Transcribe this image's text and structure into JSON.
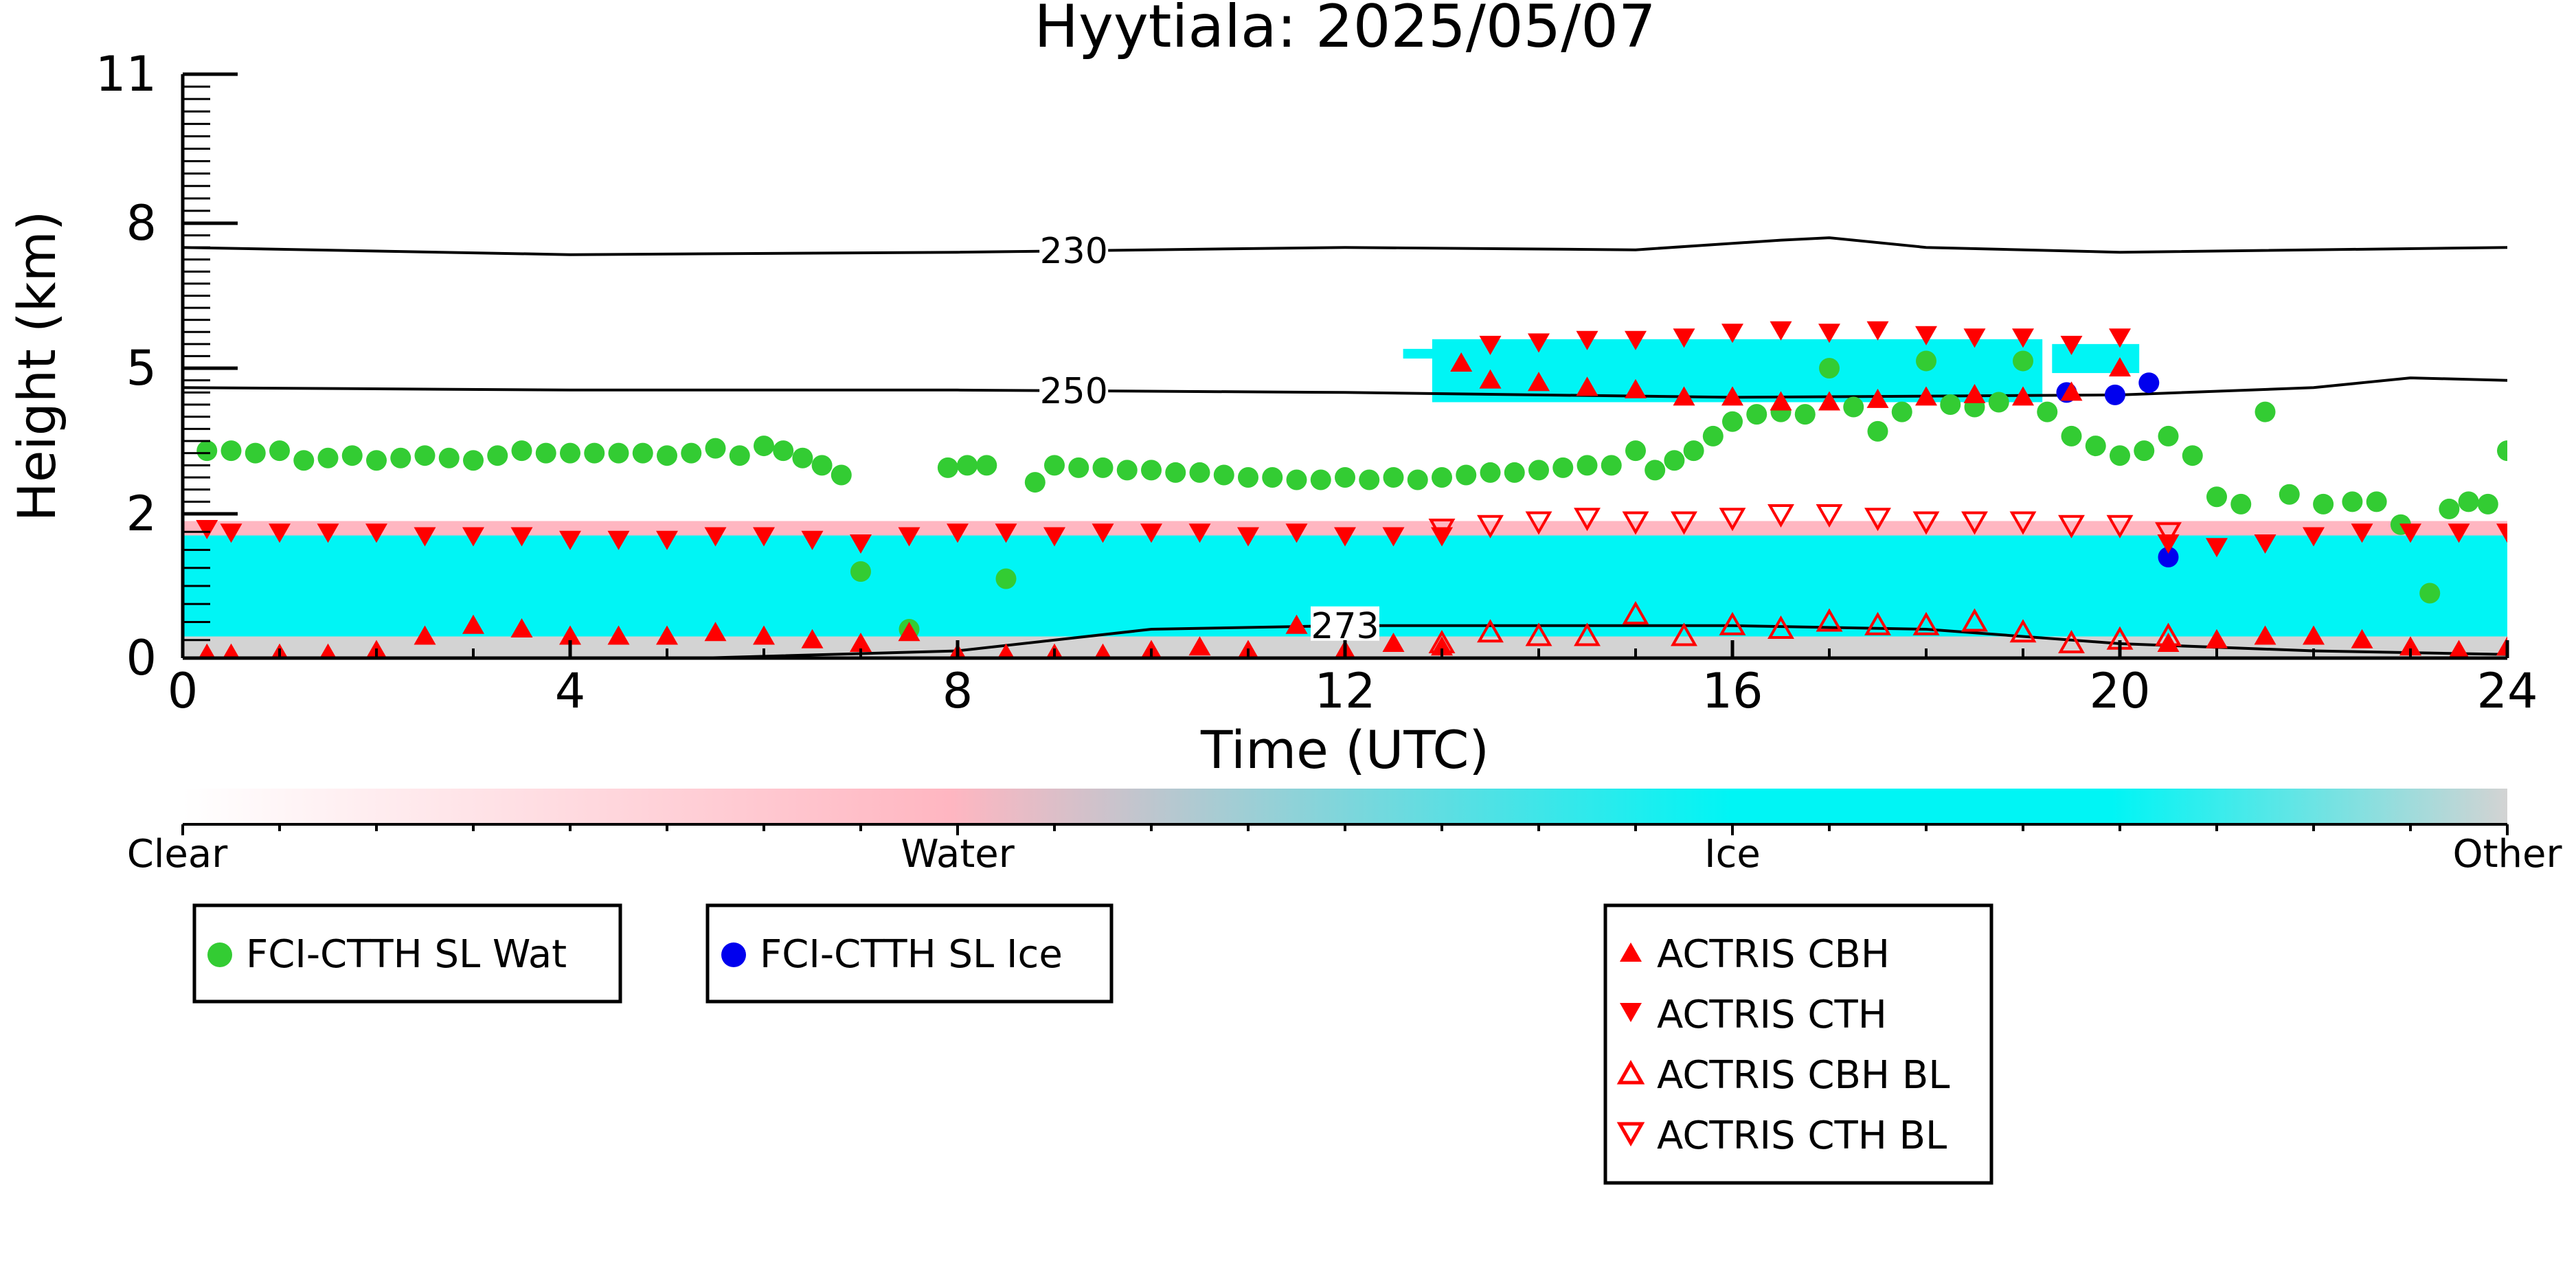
{
  "chart_data": {
    "type": "scatter",
    "title": "Hyytiala: 2025/05/07",
    "xlabel": "Time (UTC)",
    "ylabel": "Height (km)",
    "xlim": [
      0,
      24
    ],
    "ylim": [
      0,
      11
    ],
    "x_ticks": [
      0,
      4,
      8,
      12,
      16,
      20,
      24
    ],
    "x_tick_labels": [
      "0",
      "4",
      "8",
      "12",
      "16",
      "20",
      "24"
    ],
    "y_ticks": [
      0,
      2,
      5,
      8,
      11
    ],
    "y_tick_labels": [
      "0",
      "2",
      "5",
      "8",
      "11"
    ],
    "y_scale": "nonlinear (0-2 km expanded)",
    "grid": false,
    "background": {
      "phase_colorbar": {
        "labels": [
          "Clear",
          "Water",
          "Ice",
          "Other"
        ],
        "colors": [
          "#ffffff",
          "#ffb6c1",
          "#00f5f5",
          "#d3d3d3"
        ]
      },
      "regions": [
        {
          "phase": "Water",
          "x0": 0.0,
          "x1": 24.0,
          "y0": 1.45,
          "y1": 1.9
        },
        {
          "phase": "Ice",
          "x0": 0.0,
          "x1": 24.0,
          "y0": 0.25,
          "y1": 1.7
        },
        {
          "phase": "Other",
          "x0": 0.0,
          "x1": 24.0,
          "y0": 0.0,
          "y1": 0.3
        },
        {
          "phase": "Ice",
          "x0": 12.9,
          "x1": 19.2,
          "y0": 4.3,
          "y1": 5.6
        },
        {
          "phase": "Ice",
          "x0": 19.3,
          "x1": 20.2,
          "y0": 4.9,
          "y1": 5.5
        },
        {
          "phase": "Ice",
          "x0": 12.6,
          "x1": 13.0,
          "y0": 5.2,
          "y1": 5.4
        }
      ]
    },
    "temperature_contours": [
      {
        "label": "230",
        "points": [
          [
            0,
            7.5
          ],
          [
            4,
            7.35
          ],
          [
            8,
            7.4
          ],
          [
            12,
            7.5
          ],
          [
            15,
            7.45
          ],
          [
            16.5,
            7.65
          ],
          [
            17,
            7.7
          ],
          [
            18,
            7.5
          ],
          [
            20,
            7.4
          ],
          [
            24,
            7.5
          ]
        ],
        "label_at": 9.2
      },
      {
        "label": "250",
        "points": [
          [
            0,
            4.6
          ],
          [
            4,
            4.55
          ],
          [
            8,
            4.55
          ],
          [
            12,
            4.5
          ],
          [
            16,
            4.4
          ],
          [
            20,
            4.45
          ],
          [
            22,
            4.6
          ],
          [
            23,
            4.8
          ],
          [
            24,
            4.75
          ]
        ],
        "label_at": 9.2
      },
      {
        "label": "273",
        "points": [
          [
            0,
            0.0
          ],
          [
            4,
            -0.05
          ],
          [
            8,
            0.1
          ],
          [
            10,
            0.4
          ],
          [
            12,
            0.45
          ],
          [
            14,
            0.45
          ],
          [
            16,
            0.45
          ],
          [
            18,
            0.4
          ],
          [
            20,
            0.2
          ],
          [
            22,
            0.1
          ],
          [
            24,
            0.05
          ]
        ],
        "label_at": 12.0
      }
    ],
    "series": [
      {
        "name": "FCI-CTTH SL Wat",
        "marker": "circle",
        "color": "#33cc33",
        "points": [
          [
            0.25,
            3.3
          ],
          [
            0.5,
            3.3
          ],
          [
            0.75,
            3.25
          ],
          [
            1.0,
            3.3
          ],
          [
            1.25,
            3.1
          ],
          [
            1.5,
            3.15
          ],
          [
            1.75,
            3.2
          ],
          [
            2.0,
            3.1
          ],
          [
            2.25,
            3.15
          ],
          [
            2.5,
            3.2
          ],
          [
            2.75,
            3.15
          ],
          [
            3.0,
            3.1
          ],
          [
            3.25,
            3.2
          ],
          [
            3.5,
            3.3
          ],
          [
            3.75,
            3.25
          ],
          [
            4.0,
            3.25
          ],
          [
            4.25,
            3.25
          ],
          [
            4.5,
            3.25
          ],
          [
            4.75,
            3.25
          ],
          [
            5.0,
            3.2
          ],
          [
            5.25,
            3.25
          ],
          [
            5.5,
            3.35
          ],
          [
            5.75,
            3.2
          ],
          [
            6.0,
            3.4
          ],
          [
            6.2,
            3.3
          ],
          [
            6.4,
            3.15
          ],
          [
            6.6,
            3.0
          ],
          [
            6.8,
            2.8
          ],
          [
            7.0,
            1.2
          ],
          [
            7.5,
            0.4
          ],
          [
            7.9,
            2.95
          ],
          [
            8.1,
            3.0
          ],
          [
            8.3,
            3.0
          ],
          [
            8.5,
            1.1
          ],
          [
            8.8,
            2.65
          ],
          [
            9.0,
            3.0
          ],
          [
            9.25,
            2.95
          ],
          [
            9.5,
            2.95
          ],
          [
            9.75,
            2.9
          ],
          [
            10.0,
            2.9
          ],
          [
            10.25,
            2.85
          ],
          [
            10.5,
            2.85
          ],
          [
            10.75,
            2.8
          ],
          [
            11.0,
            2.75
          ],
          [
            11.25,
            2.75
          ],
          [
            11.5,
            2.7
          ],
          [
            11.75,
            2.7
          ],
          [
            12.0,
            2.75
          ],
          [
            12.25,
            2.7
          ],
          [
            12.5,
            2.75
          ],
          [
            12.75,
            2.7
          ],
          [
            13.0,
            2.75
          ],
          [
            13.25,
            2.8
          ],
          [
            13.5,
            2.85
          ],
          [
            13.75,
            2.85
          ],
          [
            14.0,
            2.9
          ],
          [
            14.25,
            2.95
          ],
          [
            14.5,
            3.0
          ],
          [
            14.75,
            3.0
          ],
          [
            15.0,
            3.3
          ],
          [
            15.2,
            2.9
          ],
          [
            15.4,
            3.1
          ],
          [
            15.6,
            3.3
          ],
          [
            15.8,
            3.6
          ],
          [
            16.0,
            3.9
          ],
          [
            16.25,
            4.05
          ],
          [
            16.5,
            4.1
          ],
          [
            16.75,
            4.05
          ],
          [
            17.0,
            5.0
          ],
          [
            17.25,
            4.2
          ],
          [
            17.5,
            3.7
          ],
          [
            17.75,
            4.1
          ],
          [
            18.0,
            5.15
          ],
          [
            18.25,
            4.25
          ],
          [
            18.5,
            4.2
          ],
          [
            18.75,
            4.3
          ],
          [
            19.0,
            5.15
          ],
          [
            19.25,
            4.1
          ],
          [
            19.5,
            3.6
          ],
          [
            19.75,
            3.4
          ],
          [
            20.0,
            3.2
          ],
          [
            20.25,
            3.3
          ],
          [
            20.5,
            3.6
          ],
          [
            20.75,
            3.2
          ],
          [
            21.0,
            2.35
          ],
          [
            21.25,
            2.2
          ],
          [
            21.5,
            4.1
          ],
          [
            21.75,
            2.4
          ],
          [
            22.1,
            2.2
          ],
          [
            22.4,
            2.25
          ],
          [
            22.65,
            2.25
          ],
          [
            22.9,
            1.85
          ],
          [
            23.2,
            0.9
          ],
          [
            23.4,
            2.1
          ],
          [
            23.6,
            2.25
          ],
          [
            23.8,
            2.2
          ],
          [
            24.0,
            3.3
          ]
        ]
      },
      {
        "name": "FCI-CTTH SL Ice",
        "marker": "circle",
        "color": "#0000ee",
        "points": [
          [
            19.45,
            4.5
          ],
          [
            19.95,
            4.45
          ],
          [
            20.3,
            4.7
          ],
          [
            20.5,
            1.4
          ]
        ]
      },
      {
        "name": "ACTRIS CBH",
        "marker": "triangle-up",
        "filled": true,
        "color": "#ff0000",
        "points": [
          [
            0.25,
            0.05
          ],
          [
            0.5,
            0.05
          ],
          [
            1.0,
            0.05
          ],
          [
            1.5,
            0.05
          ],
          [
            2.0,
            0.1
          ],
          [
            2.5,
            0.3
          ],
          [
            3.0,
            0.45
          ],
          [
            3.5,
            0.4
          ],
          [
            4.0,
            0.3
          ],
          [
            4.5,
            0.3
          ],
          [
            5.0,
            0.3
          ],
          [
            5.5,
            0.35
          ],
          [
            6.0,
            0.3
          ],
          [
            6.5,
            0.25
          ],
          [
            7.0,
            0.2
          ],
          [
            7.5,
            0.35
          ],
          [
            8.0,
            0.05
          ],
          [
            8.5,
            0.05
          ],
          [
            9.0,
            0.05
          ],
          [
            9.5,
            0.05
          ],
          [
            10.0,
            0.1
          ],
          [
            10.5,
            0.15
          ],
          [
            11.0,
            0.1
          ],
          [
            11.5,
            0.45
          ],
          [
            12.0,
            0.1
          ],
          [
            12.5,
            0.2
          ],
          [
            13.0,
            0.15
          ],
          [
            13.2,
            5.1
          ],
          [
            13.5,
            4.75
          ],
          [
            14.0,
            4.7
          ],
          [
            14.5,
            4.6
          ],
          [
            15.0,
            4.55
          ],
          [
            15.5,
            4.4
          ],
          [
            16.0,
            4.4
          ],
          [
            16.5,
            4.3
          ],
          [
            17.0,
            4.3
          ],
          [
            17.5,
            4.35
          ],
          [
            18.0,
            4.4
          ],
          [
            18.5,
            4.45
          ],
          [
            19.0,
            4.4
          ],
          [
            19.5,
            4.5
          ],
          [
            20.0,
            5.0
          ],
          [
            20.5,
            0.2
          ],
          [
            21.0,
            0.25
          ],
          [
            21.5,
            0.3
          ],
          [
            22.0,
            0.3
          ],
          [
            22.5,
            0.25
          ],
          [
            23.0,
            0.15
          ],
          [
            23.5,
            0.1
          ],
          [
            24.0,
            0.15
          ]
        ]
      },
      {
        "name": "ACTRIS CTH",
        "marker": "triangle-down",
        "filled": true,
        "color": "#ff0000",
        "points": [
          [
            0.25,
            1.8
          ],
          [
            0.5,
            1.75
          ],
          [
            1.0,
            1.75
          ],
          [
            1.5,
            1.75
          ],
          [
            2.0,
            1.75
          ],
          [
            2.5,
            1.7
          ],
          [
            3.0,
            1.7
          ],
          [
            3.5,
            1.7
          ],
          [
            4.0,
            1.65
          ],
          [
            4.5,
            1.65
          ],
          [
            5.0,
            1.65
          ],
          [
            5.5,
            1.7
          ],
          [
            6.0,
            1.7
          ],
          [
            6.5,
            1.65
          ],
          [
            7.0,
            1.6
          ],
          [
            7.5,
            1.7
          ],
          [
            8.0,
            1.75
          ],
          [
            8.5,
            1.75
          ],
          [
            9.0,
            1.7
          ],
          [
            9.5,
            1.75
          ],
          [
            10.0,
            1.75
          ],
          [
            10.5,
            1.75
          ],
          [
            11.0,
            1.7
          ],
          [
            11.5,
            1.75
          ],
          [
            12.0,
            1.7
          ],
          [
            12.5,
            1.7
          ],
          [
            13.0,
            1.7
          ],
          [
            13.5,
            5.5
          ],
          [
            14.0,
            5.55
          ],
          [
            14.5,
            5.6
          ],
          [
            15.0,
            5.6
          ],
          [
            15.5,
            5.65
          ],
          [
            16.0,
            5.75
          ],
          [
            16.5,
            5.8
          ],
          [
            17.0,
            5.75
          ],
          [
            17.5,
            5.8
          ],
          [
            18.0,
            5.7
          ],
          [
            18.5,
            5.65
          ],
          [
            19.0,
            5.65
          ],
          [
            19.5,
            5.5
          ],
          [
            20.0,
            5.65
          ],
          [
            20.5,
            1.6
          ],
          [
            21.0,
            1.55
          ],
          [
            21.5,
            1.6
          ],
          [
            22.0,
            1.7
          ],
          [
            22.5,
            1.75
          ],
          [
            23.0,
            1.75
          ],
          [
            23.5,
            1.75
          ],
          [
            24.0,
            1.75
          ]
        ]
      },
      {
        "name": "ACTRIS CBH BL",
        "marker": "triangle-up",
        "filled": false,
        "color": "#ff0000",
        "points": [
          [
            13.0,
            0.2
          ],
          [
            13.5,
            0.35
          ],
          [
            14.0,
            0.3
          ],
          [
            14.5,
            0.3
          ],
          [
            15.0,
            0.6
          ],
          [
            15.5,
            0.3
          ],
          [
            16.0,
            0.45
          ],
          [
            16.5,
            0.4
          ],
          [
            17.0,
            0.5
          ],
          [
            17.5,
            0.45
          ],
          [
            18.0,
            0.45
          ],
          [
            18.5,
            0.5
          ],
          [
            19.0,
            0.35
          ],
          [
            19.5,
            0.2
          ],
          [
            20.0,
            0.25
          ],
          [
            20.5,
            0.3
          ]
        ]
      },
      {
        "name": "ACTRIS CTH BL",
        "marker": "triangle-down",
        "filled": false,
        "color": "#ff0000",
        "points": [
          [
            13.0,
            1.8
          ],
          [
            13.5,
            1.85
          ],
          [
            14.0,
            1.9
          ],
          [
            14.5,
            1.95
          ],
          [
            15.0,
            1.9
          ],
          [
            15.5,
            1.9
          ],
          [
            16.0,
            1.95
          ],
          [
            16.5,
            2.0
          ],
          [
            17.0,
            2.0
          ],
          [
            17.5,
            1.95
          ],
          [
            18.0,
            1.9
          ],
          [
            18.5,
            1.9
          ],
          [
            19.0,
            1.9
          ],
          [
            19.5,
            1.85
          ],
          [
            20.0,
            1.85
          ],
          [
            20.5,
            1.75
          ]
        ]
      }
    ],
    "legends": [
      {
        "entries": [
          "FCI-CTTH SL Wat"
        ]
      },
      {
        "entries": [
          "FCI-CTTH SL Ice"
        ]
      },
      {
        "entries": [
          "ACTRIS CBH",
          "ACTRIS CTH",
          "ACTRIS CBH BL",
          "ACTRIS CTH BL"
        ]
      }
    ]
  }
}
